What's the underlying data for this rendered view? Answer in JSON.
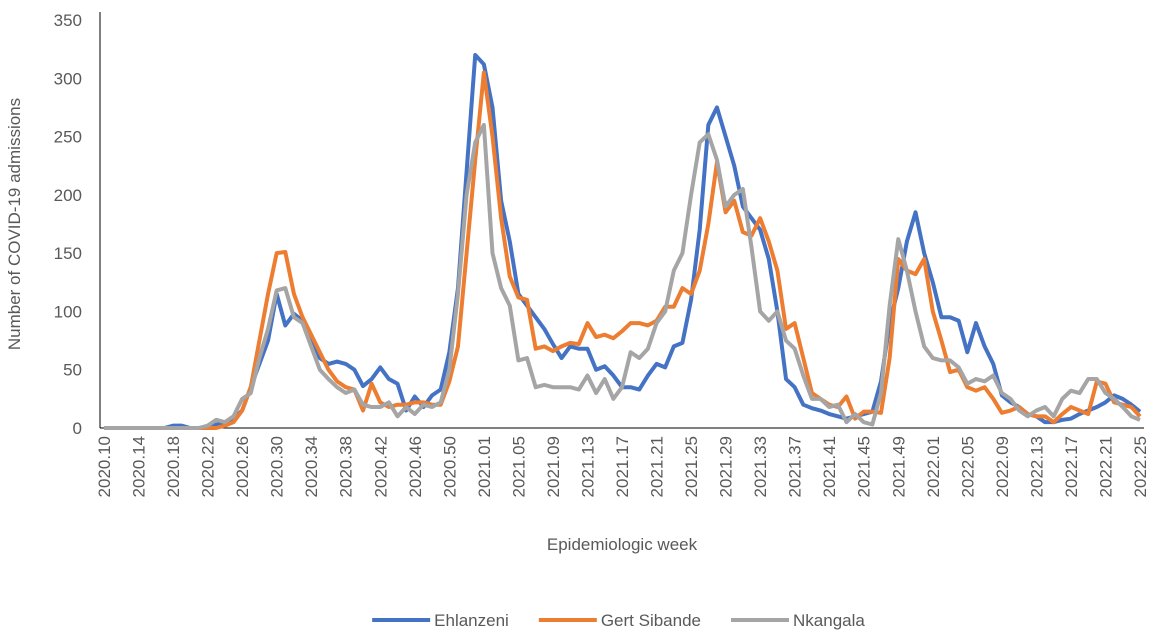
{
  "chart_data": {
    "type": "line",
    "x_label": "Epidemiologic week",
    "y_label": "Number of COVID-19 admissions",
    "ylim": [
      0,
      350
    ],
    "yticks": [
      0,
      50,
      100,
      150,
      200,
      250,
      300,
      350
    ],
    "grid": false,
    "legend": "bottom",
    "categories": [
      "2020.10",
      null,
      null,
      null,
      "2020.14",
      null,
      null,
      null,
      "2020.18",
      null,
      null,
      null,
      "2020.22",
      null,
      null,
      null,
      "2020.26",
      null,
      null,
      null,
      "2020.30",
      null,
      null,
      null,
      "2020.34",
      null,
      null,
      null,
      "2020.38",
      null,
      null,
      null,
      "2020.42",
      null,
      null,
      null,
      "2020.46",
      null,
      null,
      null,
      "2020.50",
      null,
      null,
      null,
      "2021.01",
      null,
      null,
      null,
      "2021.05",
      null,
      null,
      null,
      "2021.09",
      null,
      null,
      null,
      "2021.13",
      null,
      null,
      null,
      "2021.17",
      null,
      null,
      null,
      "2021.21",
      null,
      null,
      null,
      "2021.25",
      null,
      null,
      null,
      "2021.29",
      null,
      null,
      null,
      "2021.33",
      null,
      null,
      null,
      "2021.37",
      null,
      null,
      null,
      "2021.41",
      null,
      null,
      null,
      "2021.45",
      null,
      null,
      null,
      "2021.49",
      null,
      null,
      null,
      "2022.01",
      null,
      null,
      null,
      "2022.05",
      null,
      null,
      null,
      "2022.09",
      null,
      null,
      null,
      "2022.13",
      null,
      null,
      null,
      "2022.17",
      null,
      null,
      null,
      "2022.21",
      null,
      null,
      null,
      "2022.25"
    ],
    "series": [
      {
        "name": "Ehlanzeni",
        "color": "#4472c4",
        "values": [
          0,
          0,
          0,
          0,
          0,
          0,
          0,
          0,
          2,
          2,
          0,
          0,
          1,
          3,
          5,
          8,
          15,
          35,
          55,
          75,
          115,
          88,
          98,
          92,
          78,
          60,
          55,
          57,
          55,
          50,
          36,
          42,
          52,
          42,
          38,
          15,
          27,
          18,
          28,
          33,
          65,
          120,
          220,
          320,
          312,
          275,
          195,
          160,
          115,
          105,
          95,
          85,
          72,
          60,
          70,
          68,
          68,
          50,
          53,
          45,
          35,
          35,
          33,
          45,
          55,
          52,
          70,
          73,
          110,
          170,
          260,
          275,
          250,
          225,
          190,
          180,
          170,
          145,
          100,
          42,
          35,
          20,
          17,
          15,
          12,
          10,
          8,
          10,
          12,
          14,
          40,
          90,
          120,
          160,
          185,
          150,
          125,
          95,
          95,
          92,
          65,
          90,
          70,
          55,
          28,
          22,
          18,
          12,
          10,
          5,
          5,
          7,
          8,
          12,
          15,
          18,
          22,
          28,
          25,
          20,
          14
        ]
      },
      {
        "name": "Gert Sibande",
        "color": "#ed7d31",
        "values": [
          0,
          0,
          0,
          0,
          0,
          0,
          0,
          0,
          0,
          0,
          0,
          0,
          0,
          0,
          2,
          5,
          15,
          35,
          75,
          115,
          150,
          151,
          115,
          95,
          80,
          65,
          50,
          40,
          35,
          33,
          15,
          38,
          22,
          18,
          20,
          20,
          22,
          22,
          20,
          20,
          40,
          70,
          150,
          230,
          305,
          250,
          180,
          130,
          112,
          110,
          68,
          70,
          66,
          70,
          73,
          72,
          90,
          78,
          80,
          77,
          83,
          90,
          90,
          88,
          92,
          104,
          104,
          120,
          115,
          135,
          175,
          228,
          185,
          195,
          168,
          165,
          180,
          160,
          135,
          85,
          90,
          60,
          30,
          25,
          20,
          18,
          27,
          8,
          14,
          14,
          13,
          60,
          145,
          135,
          132,
          145,
          100,
          75,
          48,
          50,
          35,
          32,
          35,
          25,
          13,
          15,
          18,
          12,
          10,
          10,
          5,
          12,
          18,
          15,
          12,
          40,
          38,
          22,
          20,
          18,
          10
        ]
      },
      {
        "name": "Nkangala",
        "color": "#a5a5a5",
        "values": [
          0,
          0,
          0,
          0,
          0,
          0,
          0,
          0,
          0,
          0,
          0,
          0,
          2,
          7,
          5,
          10,
          25,
          30,
          60,
          85,
          118,
          120,
          95,
          90,
          70,
          50,
          42,
          35,
          30,
          33,
          20,
          18,
          18,
          22,
          10,
          18,
          12,
          20,
          18,
          22,
          50,
          115,
          200,
          245,
          260,
          150,
          120,
          105,
          58,
          60,
          35,
          37,
          35,
          35,
          35,
          33,
          45,
          30,
          42,
          25,
          35,
          65,
          60,
          68,
          90,
          100,
          135,
          150,
          200,
          245,
          252,
          230,
          190,
          200,
          205,
          155,
          100,
          92,
          100,
          75,
          68,
          45,
          25,
          25,
          18,
          20,
          5,
          12,
          5,
          3,
          30,
          105,
          162,
          135,
          100,
          70,
          60,
          58,
          58,
          52,
          38,
          42,
          40,
          45,
          30,
          25,
          15,
          10,
          15,
          18,
          10,
          25,
          32,
          30,
          42,
          42,
          30,
          25,
          18,
          10,
          7
        ]
      }
    ]
  }
}
